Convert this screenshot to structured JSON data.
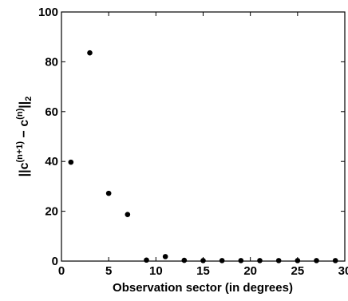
{
  "chart_data": {
    "type": "scatter",
    "xlabel": "Observation sector (in degrees)",
    "ylabel": {
      "base": "||c",
      "sup1": "(n+1)",
      "mid": " − c",
      "sup2": "(n)",
      "end": "||",
      "sub": "2"
    },
    "xlim": [
      0,
      30
    ],
    "ylim": [
      0,
      100
    ],
    "xticks": [
      0,
      5,
      10,
      15,
      20,
      25,
      30
    ],
    "yticks": [
      0,
      20,
      40,
      60,
      80,
      100
    ],
    "grid": false,
    "marker_color": "#000000",
    "series": [
      {
        "x": [
          1,
          3,
          5,
          7,
          9,
          11,
          13,
          15,
          17,
          19,
          21,
          23,
          25,
          27,
          29
        ],
        "y": [
          39.7,
          83.6,
          27.2,
          18.7,
          0.4,
          1.8,
          0.3,
          0.2,
          0.2,
          0.2,
          0.2,
          0.2,
          0.2,
          0.2,
          0.2
        ]
      }
    ]
  }
}
